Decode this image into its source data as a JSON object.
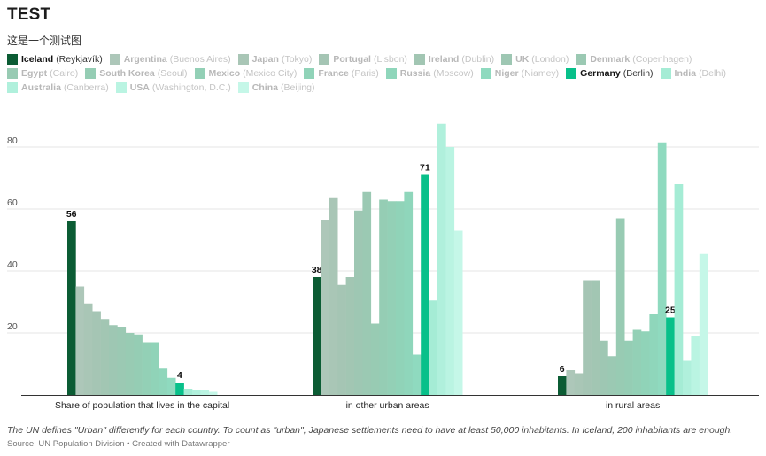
{
  "title": "TEST",
  "subtitle": "这是一个测试图",
  "note": "The UN defines \"Urban\" differently for each country. To count as \"urban\", Japanese settlements need to have at least 50,000 inhabitants. In Iceland, 200 inhabitants are enough.",
  "source": "Source: UN Population Division • Created with Datawrapper",
  "chart_data": {
    "type": "bar",
    "title": "TEST",
    "subtitle": "这是一个测试图",
    "categories": [
      "Share of population that lives in the capital",
      "in other urban areas",
      "in rural areas"
    ],
    "ylim": [
      0,
      90
    ],
    "yticks": [
      20,
      40,
      60,
      80
    ],
    "grid": true,
    "legend_position": "top",
    "series": [
      {
        "name": "Iceland",
        "city": "Reykjavík",
        "color": "#0b5c34",
        "highlight": true,
        "values": [
          56,
          38,
          6
        ]
      },
      {
        "name": "Argentina",
        "city": "Buenos Aires",
        "color": "#adc7b9",
        "highlight": false,
        "values": [
          35,
          56.5,
          8
        ]
      },
      {
        "name": "Japan",
        "city": "Tokyo",
        "color": "#a9c6b6",
        "highlight": false,
        "values": [
          29.5,
          63.5,
          7
        ]
      },
      {
        "name": "Portugal",
        "city": "Lisbon",
        "color": "#a5c5b4",
        "highlight": false,
        "values": [
          27,
          35.5,
          37
        ]
      },
      {
        "name": "Ireland",
        "city": "Dublin",
        "color": "#a2c6b3",
        "highlight": false,
        "values": [
          24.5,
          38,
          37
        ]
      },
      {
        "name": "UK",
        "city": "London",
        "color": "#9ec7b3",
        "highlight": false,
        "values": [
          22.5,
          59.5,
          17.5
        ]
      },
      {
        "name": "Denmark",
        "city": "Copenhagen",
        "color": "#9bc9b3",
        "highlight": false,
        "values": [
          22,
          65.5,
          12.5
        ]
      },
      {
        "name": "Egypt",
        "city": "Cairo",
        "color": "#98cbb3",
        "highlight": false,
        "values": [
          20,
          23,
          57
        ]
      },
      {
        "name": "South Korea",
        "city": "Seoul",
        "color": "#95cdb4",
        "highlight": false,
        "values": [
          19.5,
          63,
          17.5
        ]
      },
      {
        "name": "Mexico",
        "city": "Mexico City",
        "color": "#93d0b6",
        "highlight": false,
        "values": [
          17,
          62.5,
          21
        ]
      },
      {
        "name": "France",
        "city": "Paris",
        "color": "#90d3b8",
        "highlight": false,
        "values": [
          17,
          62.5,
          20.5
        ]
      },
      {
        "name": "Russia",
        "city": "Moscow",
        "color": "#8fd6bb",
        "highlight": false,
        "values": [
          8.5,
          65.5,
          26
        ]
      },
      {
        "name": "Niger",
        "city": "Niamey",
        "color": "#8fdabf",
        "highlight": false,
        "values": [
          5.5,
          13,
          81.5
        ]
      },
      {
        "name": "Germany",
        "city": "Berlin",
        "color": "#08c08a",
        "highlight": true,
        "values": [
          4,
          71,
          25
        ]
      },
      {
        "name": "India",
        "city": "Delhi",
        "color": "#a5ecd5",
        "highlight": false,
        "values": [
          2,
          30.5,
          68
        ]
      },
      {
        "name": "Australia",
        "city": "Canberra",
        "color": "#b0f0dc",
        "highlight": false,
        "values": [
          1.5,
          87.5,
          11
        ]
      },
      {
        "name": "USA",
        "city": "Washington, D.C.",
        "color": "#baf4e2",
        "highlight": false,
        "values": [
          1.5,
          80,
          19
        ]
      },
      {
        "name": "China",
        "city": "Beijing",
        "color": "#c5f7e8",
        "highlight": false,
        "values": [
          1,
          53,
          45.5
        ]
      }
    ]
  }
}
